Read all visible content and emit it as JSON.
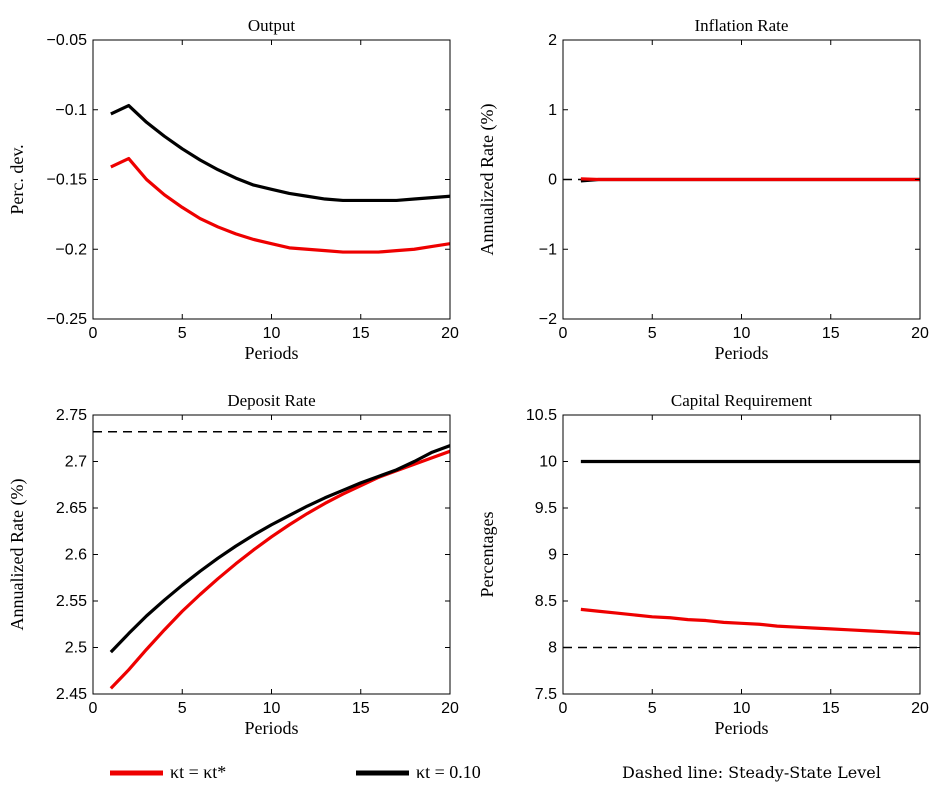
{
  "legend": {
    "red_label": "κt = κt*",
    "black_label": "κt = 0.10",
    "note": "Dashed line: Steady-State Level"
  },
  "colors": {
    "red": "#ee0000",
    "black": "#000000"
  },
  "chart_data": [
    {
      "type": "line",
      "title": "Output",
      "xlabel": "Periods",
      "ylabel": "Perc. dev.",
      "xlim": [
        0,
        20
      ],
      "ylim": [
        -0.25,
        -0.05
      ],
      "xticks": [
        0,
        5,
        10,
        15,
        20
      ],
      "yticks": [
        -0.25,
        -0.2,
        -0.15,
        -0.1,
        -0.05
      ],
      "ytick_labels": [
        "−0.25",
        "−0.2",
        "−0.15",
        "−0.1",
        "−0.05"
      ],
      "x": [
        1,
        2,
        3,
        4,
        5,
        6,
        7,
        8,
        9,
        10,
        11,
        12,
        13,
        14,
        15,
        16,
        17,
        18,
        19,
        20
      ],
      "series": [
        {
          "color": "red",
          "values": [
            -0.141,
            -0.135,
            -0.15,
            -0.161,
            -0.17,
            -0.178,
            -0.184,
            -0.189,
            -0.193,
            -0.196,
            -0.199,
            -0.2,
            -0.201,
            -0.202,
            -0.202,
            -0.202,
            -0.201,
            -0.2,
            -0.198,
            -0.196
          ]
        },
        {
          "color": "black",
          "values": [
            -0.103,
            -0.097,
            -0.109,
            -0.119,
            -0.128,
            -0.136,
            -0.143,
            -0.149,
            -0.154,
            -0.157,
            -0.16,
            -0.162,
            -0.164,
            -0.165,
            -0.165,
            -0.165,
            -0.165,
            -0.164,
            -0.163,
            -0.162
          ]
        }
      ],
      "steady_state": null
    },
    {
      "type": "line",
      "title": "Inflation Rate",
      "xlabel": "Periods",
      "ylabel": "Annualized Rate (%)",
      "xlim": [
        0,
        20
      ],
      "ylim": [
        -2,
        2
      ],
      "xticks": [
        0,
        5,
        10,
        15,
        20
      ],
      "yticks": [
        -2,
        -1,
        0,
        1,
        2
      ],
      "ytick_labels": [
        "−2",
        "−1",
        "0",
        "1",
        "2"
      ],
      "x": [
        1,
        2,
        3,
        4,
        5,
        6,
        7,
        8,
        9,
        10,
        11,
        12,
        13,
        14,
        15,
        16,
        17,
        18,
        19,
        20
      ],
      "series": [
        {
          "color": "black",
          "values": [
            -0.02,
            0,
            0,
            0,
            0,
            0,
            0,
            0,
            0,
            0,
            0,
            0,
            0,
            0,
            0,
            0,
            0,
            0,
            0,
            0
          ]
        },
        {
          "color": "red",
          "values": [
            0.01,
            0,
            0,
            0,
            0,
            0,
            0,
            0,
            0,
            0,
            0,
            0,
            0,
            0,
            0,
            0,
            0,
            0,
            0,
            0
          ]
        }
      ],
      "steady_state": 0
    },
    {
      "type": "line",
      "title": "Deposit Rate",
      "xlabel": "Periods",
      "ylabel": "Annualized Rate (%)",
      "xlim": [
        0,
        20
      ],
      "ylim": [
        2.45,
        2.75
      ],
      "xticks": [
        0,
        5,
        10,
        15,
        20
      ],
      "yticks": [
        2.45,
        2.5,
        2.55,
        2.6,
        2.65,
        2.7,
        2.75
      ],
      "ytick_labels": [
        "2.45",
        "2.5",
        "2.55",
        "2.6",
        "2.65",
        "2.7",
        "2.75"
      ],
      "x": [
        1,
        2,
        3,
        4,
        5,
        6,
        7,
        8,
        9,
        10,
        11,
        12,
        13,
        14,
        15,
        16,
        17,
        18,
        19,
        20
      ],
      "series": [
        {
          "color": "red",
          "values": [
            2.456,
            2.476,
            2.498,
            2.519,
            2.539,
            2.557,
            2.574,
            2.59,
            2.605,
            2.619,
            2.632,
            2.644,
            2.655,
            2.665,
            2.674,
            2.683,
            2.69,
            2.697,
            2.704,
            2.711
          ]
        },
        {
          "color": "black",
          "values": [
            2.495,
            2.515,
            2.534,
            2.551,
            2.567,
            2.582,
            2.596,
            2.609,
            2.621,
            2.632,
            2.642,
            2.652,
            2.661,
            2.669,
            2.677,
            2.684,
            2.691,
            2.7,
            2.71,
            2.717
          ]
        }
      ],
      "steady_state": 2.732
    },
    {
      "type": "line",
      "title": "Capital Requirement",
      "xlabel": "Periods",
      "ylabel": "Percentages",
      "xlim": [
        0,
        20
      ],
      "ylim": [
        7.5,
        10.5
      ],
      "xticks": [
        0,
        5,
        10,
        15,
        20
      ],
      "yticks": [
        7.5,
        8,
        8.5,
        9,
        9.5,
        10,
        10.5
      ],
      "ytick_labels": [
        "7.5",
        "8",
        "8.5",
        "9",
        "9.5",
        "10",
        "10.5"
      ],
      "x": [
        1,
        2,
        3,
        4,
        5,
        6,
        7,
        8,
        9,
        10,
        11,
        12,
        13,
        14,
        15,
        16,
        17,
        18,
        19,
        20
      ],
      "series": [
        {
          "color": "black",
          "values": [
            10,
            10,
            10,
            10,
            10,
            10,
            10,
            10,
            10,
            10,
            10,
            10,
            10,
            10,
            10,
            10,
            10,
            10,
            10,
            10
          ]
        },
        {
          "color": "red",
          "values": [
            8.41,
            8.39,
            8.37,
            8.35,
            8.33,
            8.32,
            8.3,
            8.29,
            8.27,
            8.26,
            8.25,
            8.23,
            8.22,
            8.21,
            8.2,
            8.19,
            8.18,
            8.17,
            8.16,
            8.15
          ]
        }
      ],
      "steady_state": 8
    }
  ]
}
